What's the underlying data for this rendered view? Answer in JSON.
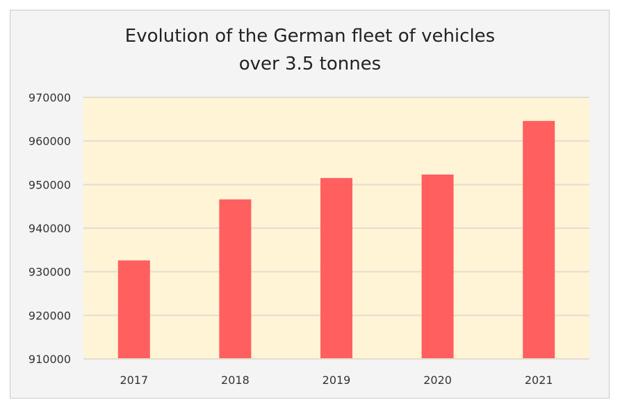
{
  "chart_data": {
    "type": "bar",
    "title_lines": [
      "Evolution of the German fleet of vehicles",
      "over 3.5 tonnes"
    ],
    "categories": [
      "2017",
      "2018",
      "2019",
      "2020",
      "2021"
    ],
    "values": [
      932600,
      946600,
      951500,
      952300,
      964600
    ],
    "ylim": [
      910000,
      970000
    ],
    "yticks": [
      "910000",
      "920000",
      "930000",
      "940000",
      "950000",
      "960000",
      "970000"
    ],
    "xlabel": "",
    "ylabel": "",
    "grid": true,
    "colors": {
      "bar": "#ff5f5f",
      "plot_background": "#fff4d6",
      "grid": "#e2ddd0",
      "background": "#f4f4f4"
    }
  }
}
